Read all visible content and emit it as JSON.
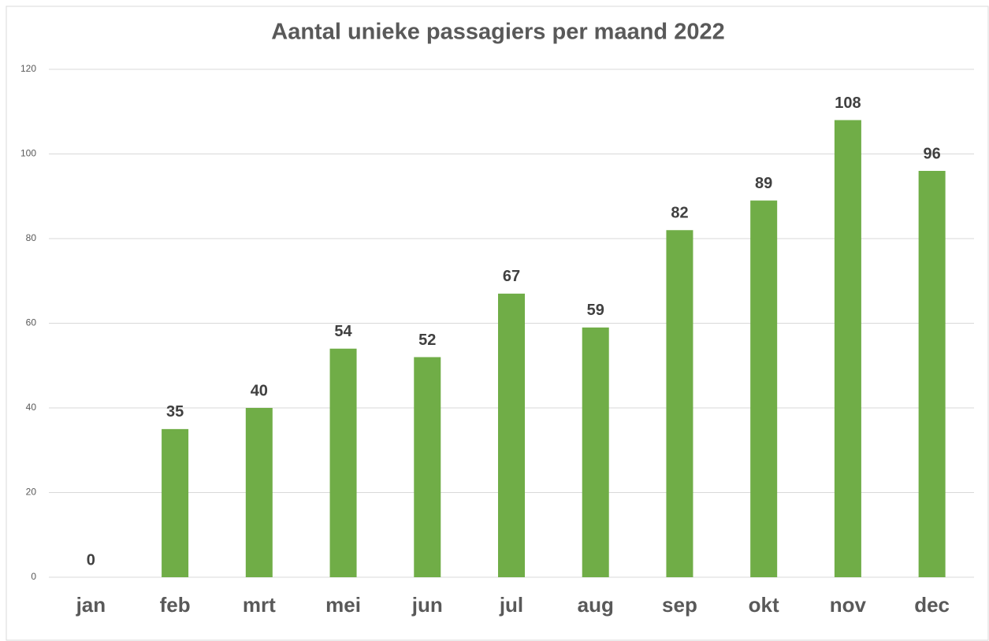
{
  "chart_data": {
    "type": "bar",
    "title": "Aantal unieke passagiers per maand 2022",
    "categories": [
      "jan",
      "feb",
      "mrt",
      "mei",
      "jun",
      "jul",
      "aug",
      "sep",
      "okt",
      "nov",
      "dec"
    ],
    "values": [
      0,
      35,
      40,
      54,
      52,
      67,
      59,
      82,
      89,
      108,
      96
    ],
    "color": "#70ad47",
    "ylim": [
      0,
      120
    ],
    "yticks": [
      0,
      20,
      40,
      60,
      80,
      100,
      120
    ],
    "grid": true
  }
}
